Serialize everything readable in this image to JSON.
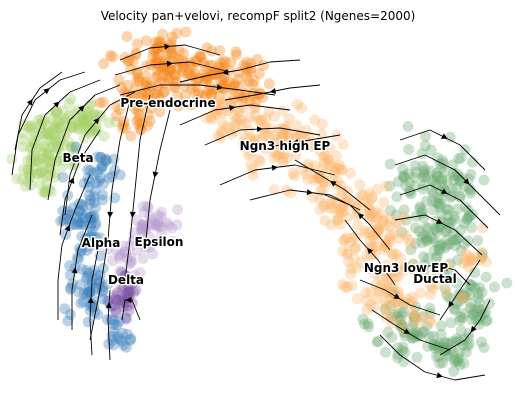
{
  "chart_data": {
    "type": "scatter",
    "subtype": "umap-velocity-stream",
    "title": "Velocity pan+velovi, recompF split2 (Ngenes=2000)",
    "xlabel": "",
    "ylabel": "",
    "axes_visible": false,
    "grid": false,
    "legend": "on-data",
    "clusters": [
      {
        "name": "Pre-endocrine",
        "color": "#f58518",
        "label": "Pre-endocrine"
      },
      {
        "name": "Ngn3 high EP",
        "color": "#fdb46b",
        "label": "Ngn3 high EP"
      },
      {
        "name": "Ngn3 low EP",
        "color": "#fdb46b",
        "label": "Ngn3 low EP"
      },
      {
        "name": "Ductal",
        "color": "#6aa86f",
        "label": "Ductal"
      },
      {
        "name": "Beta",
        "color": "#a6d06a",
        "label": "Beta"
      },
      {
        "name": "Alpha",
        "color": "#3a7fb9",
        "label": "Alpha"
      },
      {
        "name": "Delta",
        "color": "#7b4fa3",
        "label": "Delta"
      },
      {
        "name": "Epsilon",
        "color": "#b79ccd",
        "label": "Epsilon"
      }
    ],
    "stream_color": "#000000"
  }
}
